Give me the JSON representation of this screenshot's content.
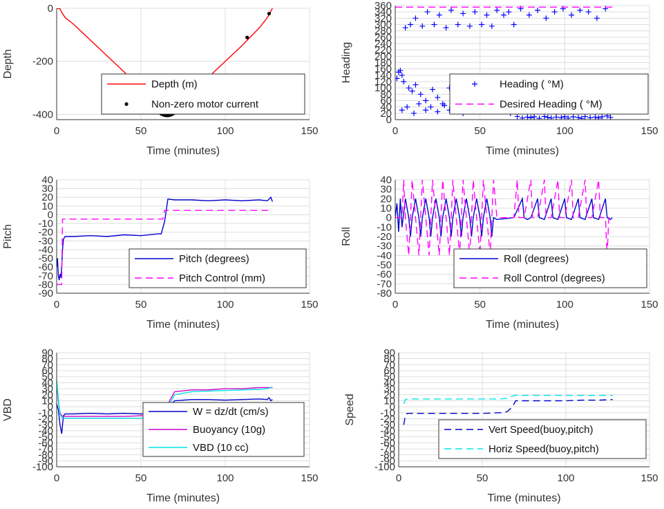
{
  "chart_data": [
    {
      "type": "line",
      "xlabel": "Time (minutes)",
      "ylabel": "Depth",
      "xlim": [
        0,
        150
      ],
      "ylim": [
        -420,
        0
      ],
      "xticks": [
        0,
        50,
        100,
        150
      ],
      "yticks": [
        -400,
        -200,
        0
      ],
      "grid": true,
      "legend": "bottom-right",
      "series": [
        {
          "name": "Depth (m)",
          "color": "#ff0000",
          "style": "solid",
          "x": [
            0,
            2,
            3,
            5,
            10,
            20,
            30,
            40,
            50,
            55,
            60,
            63,
            65,
            67,
            70,
            75,
            80,
            90,
            100,
            110,
            120,
            125,
            128
          ],
          "y": [
            0,
            -2,
            -15,
            -35,
            -60,
            -120,
            -180,
            -240,
            -300,
            -330,
            -365,
            -385,
            -395,
            -390,
            -375,
            -350,
            -320,
            -260,
            -200,
            -140,
            -75,
            -35,
            0
          ]
        },
        {
          "name": "Non-zero motor current",
          "color": "#000000",
          "style": "dots",
          "x": [
            62,
            63,
            64,
            65,
            66,
            67,
            68,
            69,
            70,
            72,
            113,
            126
          ],
          "y": [
            -398,
            -401,
            -403,
            -404,
            -404,
            -403,
            -401,
            -398,
            -394,
            -388,
            -110,
            -20
          ]
        }
      ]
    },
    {
      "type": "scatter",
      "xlabel": "Time (minutes)",
      "ylabel": "Heading",
      "xlim": [
        0,
        150
      ],
      "ylim": [
        0,
        360
      ],
      "xticks": [
        0,
        50,
        100,
        150
      ],
      "yticks": [
        0,
        20,
        40,
        60,
        80,
        100,
        120,
        140,
        160,
        180,
        200,
        220,
        240,
        260,
        280,
        300,
        320,
        340,
        360
      ],
      "grid": true,
      "legend": "bottom-right",
      "series": [
        {
          "name": "Heading (  °M)",
          "color": "#0000ff",
          "style": "plus",
          "x": [
            1,
            2,
            3,
            4,
            5,
            8,
            10,
            12,
            15,
            18,
            22,
            25,
            28,
            32,
            35,
            38,
            42,
            45,
            48,
            52,
            55,
            58,
            62,
            65,
            68,
            72,
            75,
            78,
            80,
            82,
            85,
            88,
            90,
            92,
            95,
            98,
            100,
            102,
            105,
            108,
            110,
            112,
            115,
            118,
            120,
            122,
            125,
            127,
            6,
            9,
            12,
            16,
            19,
            23,
            26,
            30,
            33,
            37,
            40,
            44,
            47,
            51,
            54,
            57,
            60,
            64,
            67,
            70,
            4,
            7,
            11,
            14,
            18,
            21,
            25,
            29,
            32,
            36,
            40,
            43,
            47,
            50,
            54,
            57,
            61,
            64,
            74,
            79,
            84,
            89,
            94,
            99,
            104,
            109,
            114,
            119,
            124
          ],
          "y": [
            130,
            150,
            155,
            140,
            120,
            100,
            90,
            110,
            80,
            60,
            95,
            70,
            50,
            100,
            85,
            60,
            100,
            75,
            55,
            105,
            80,
            60,
            100,
            50,
            20,
            10,
            5,
            8,
            6,
            9,
            4,
            10,
            7,
            5,
            8,
            6,
            10,
            5,
            9,
            7,
            4,
            10,
            6,
            8,
            5,
            9,
            12,
            7,
            290,
            300,
            320,
            295,
            340,
            300,
            330,
            290,
            345,
            300,
            335,
            295,
            340,
            300,
            330,
            295,
            345,
            330,
            340,
            300,
            30,
            40,
            20,
            50,
            30,
            40,
            25,
            45,
            30,
            35,
            20,
            45,
            30,
            40,
            25,
            35,
            30,
            40,
            350,
            330,
            345,
            320,
            340,
            350,
            330,
            345,
            340,
            320,
            350
          ]
        },
        {
          "name": "Desired Heading (  °M)",
          "color": "#ff00ff",
          "style": "dashed",
          "x": [
            0,
            130
          ],
          "y": [
            355,
            355
          ]
        }
      ]
    },
    {
      "type": "line",
      "xlabel": "Time (minutes)",
      "ylabel": "Pitch",
      "xlim": [
        0,
        150
      ],
      "ylim": [
        -90,
        40
      ],
      "xticks": [
        0,
        50,
        100,
        150
      ],
      "yticks": [
        -90,
        -80,
        -70,
        -60,
        -50,
        -40,
        -30,
        -20,
        -10,
        0,
        10,
        20,
        30,
        40
      ],
      "grid": true,
      "legend": "bottom-right",
      "series": [
        {
          "name": "Pitch (degrees)",
          "color": "#0000cc",
          "style": "solid",
          "x": [
            0,
            0.5,
            1,
            1.5,
            2,
            2.5,
            3,
            3.5,
            4,
            5,
            10,
            20,
            30,
            40,
            50,
            60,
            62,
            63,
            64,
            65,
            66,
            70,
            80,
            90,
            100,
            110,
            120,
            125,
            127,
            128
          ],
          "y": [
            -60,
            -50,
            -70,
            -75,
            -68,
            -72,
            -60,
            -40,
            -28,
            -25,
            -25,
            -24,
            -25,
            -23,
            -24,
            -22,
            -22,
            -15,
            -8,
            5,
            18,
            17,
            17,
            16,
            17,
            16,
            17,
            16,
            20,
            15
          ]
        },
        {
          "name": "Pitch Control (mm)",
          "color": "#ff00ff",
          "style": "dashed",
          "x": [
            0,
            3,
            3.5,
            5,
            60,
            63,
            64,
            65,
            128
          ],
          "y": [
            -80,
            -80,
            -5,
            -5,
            -5,
            -5,
            5,
            5,
            5
          ]
        }
      ]
    },
    {
      "type": "line",
      "xlabel": "Time (minutes)",
      "ylabel": "Roll",
      "xlim": [
        0,
        150
      ],
      "ylim": [
        -80,
        40
      ],
      "xticks": [
        0,
        50,
        100,
        150
      ],
      "yticks": [
        -80,
        -70,
        -60,
        -50,
        -40,
        -30,
        -20,
        -10,
        0,
        10,
        20,
        30,
        40
      ],
      "grid": true,
      "legend": "bottom-right",
      "series": [
        {
          "name": "Roll (degrees)",
          "color": "#0000cc",
          "style": "solid",
          "x": [
            0,
            1,
            2,
            3,
            4,
            5,
            6,
            8,
            9,
            10,
            12,
            14,
            15,
            16,
            18,
            20,
            21,
            22,
            24,
            26,
            27,
            28,
            30,
            32,
            33,
            34,
            36,
            38,
            39,
            40,
            42,
            44,
            45,
            46,
            48,
            50,
            51,
            52,
            54,
            56,
            57,
            58,
            60,
            70,
            75,
            76,
            78,
            80,
            84,
            85,
            88,
            92,
            93,
            96,
            100,
            101,
            104,
            108,
            109,
            112,
            116,
            117,
            120,
            124,
            125,
            127,
            128
          ],
          "y": [
            0,
            15,
            -15,
            20,
            -10,
            5,
            20,
            0,
            -20,
            0,
            20,
            0,
            -20,
            0,
            20,
            0,
            -20,
            0,
            20,
            0,
            -20,
            0,
            20,
            0,
            -20,
            0,
            20,
            0,
            -20,
            0,
            20,
            0,
            -20,
            0,
            20,
            0,
            -20,
            0,
            20,
            0,
            -20,
            0,
            -2,
            0,
            20,
            0,
            -2,
            0,
            20,
            0,
            -2,
            20,
            0,
            -2,
            20,
            0,
            -2,
            20,
            0,
            -2,
            20,
            0,
            -2,
            20,
            0,
            -2,
            0
          ]
        },
        {
          "name": "Roll Control (degrees)",
          "color": "#ff00ff",
          "style": "dashed",
          "x": [
            0,
            4,
            5,
            6,
            8,
            9,
            10,
            12,
            14,
            15,
            16,
            18,
            20,
            21,
            22,
            24,
            26,
            27,
            28,
            30,
            32,
            33,
            34,
            36,
            38,
            39,
            40,
            42,
            44,
            45,
            46,
            48,
            50,
            51,
            52,
            54,
            56,
            57,
            58,
            60,
            70,
            72,
            73,
            76,
            80,
            81,
            84,
            88,
            89,
            92,
            96,
            97,
            100,
            104,
            105,
            108,
            112,
            113,
            116,
            120,
            121,
            124,
            125,
            126,
            128
          ],
          "y": [
            0,
            0,
            40,
            0,
            -40,
            0,
            40,
            0,
            -40,
            0,
            40,
            0,
            -40,
            0,
            40,
            0,
            -40,
            0,
            40,
            0,
            -40,
            0,
            40,
            0,
            -40,
            0,
            40,
            0,
            -40,
            0,
            40,
            0,
            -40,
            0,
            40,
            0,
            -40,
            0,
            40,
            0,
            0,
            40,
            0,
            0,
            40,
            0,
            0,
            40,
            0,
            0,
            40,
            0,
            0,
            40,
            0,
            0,
            40,
            0,
            0,
            40,
            0,
            0,
            -40,
            0,
            0
          ]
        }
      ]
    },
    {
      "type": "line",
      "xlabel": "Time (minutes)",
      "ylabel": "VBD",
      "xlim": [
        0,
        150
      ],
      "ylim": [
        -100,
        90
      ],
      "xticks": [
        0,
        50,
        100,
        150
      ],
      "yticks": [
        -100,
        -90,
        -80,
        -70,
        -60,
        -50,
        -40,
        -30,
        -20,
        -10,
        0,
        10,
        20,
        30,
        40,
        50,
        60,
        70,
        80,
        90
      ],
      "grid": true,
      "legend": "bottom-right",
      "series": [
        {
          "name": "W = dz/dt (cm/s)",
          "color": "#0000cc",
          "style": "solid",
          "x": [
            0,
            1,
            2,
            3,
            4,
            5,
            10,
            20,
            30,
            40,
            50,
            60,
            63,
            65,
            67,
            70,
            80,
            90,
            100,
            110,
            120,
            125,
            126,
            127,
            128
          ],
          "y": [
            5,
            -5,
            -30,
            -45,
            -15,
            -12,
            -12,
            -11,
            -12,
            -11,
            -12,
            -12,
            -11,
            -5,
            2,
            10,
            12,
            12,
            11,
            12,
            13,
            12,
            15,
            10,
            12
          ]
        },
        {
          "name": "Buoyancy (10g)",
          "color": "#cc00cc",
          "style": "solid",
          "x": [
            0,
            1,
            2,
            3,
            4,
            5,
            10,
            20,
            30,
            40,
            50,
            60,
            63,
            65,
            67,
            70,
            80,
            90,
            100,
            110,
            120,
            125,
            128
          ],
          "y": [
            40,
            10,
            -10,
            -15,
            -16,
            -16,
            -16,
            -16,
            -16,
            -16,
            -15,
            -15,
            -14,
            -5,
            10,
            25,
            28,
            28,
            30,
            30,
            32,
            32,
            32
          ]
        },
        {
          "name": "VBD (10 cc)",
          "color": "#00e5e5",
          "style": "solid",
          "x": [
            0,
            1,
            2,
            3,
            4,
            5,
            10,
            20,
            30,
            40,
            50,
            60,
            63,
            65,
            67,
            70,
            80,
            90,
            100,
            110,
            120,
            125,
            128
          ],
          "y": [
            45,
            15,
            -12,
            -18,
            -19,
            -19,
            -19,
            -19,
            -19,
            -19,
            -19,
            -18,
            -17,
            -10,
            5,
            20,
            25,
            26,
            27,
            28,
            29,
            30,
            33
          ]
        }
      ]
    },
    {
      "type": "line",
      "xlabel": "Time (minutes)",
      "ylabel": "Speed",
      "xlim": [
        0,
        150
      ],
      "ylim": [
        -100,
        90
      ],
      "xticks": [
        0,
        50,
        100,
        150
      ],
      "yticks": [
        -100,
        -90,
        -80,
        -70,
        -60,
        -50,
        -40,
        -30,
        -20,
        -10,
        0,
        10,
        20,
        30,
        40,
        50,
        60,
        70,
        80,
        90
      ],
      "grid": true,
      "legend": "bottom-right",
      "series": [
        {
          "name": "Vert Speed(buoy,pitch)",
          "color": "#0000cc",
          "style": "dashed",
          "x": [
            3,
            4,
            5,
            10,
            20,
            30,
            40,
            50,
            60,
            62,
            65,
            68,
            70,
            80,
            90,
            100,
            110,
            120,
            128
          ],
          "y": [
            -30,
            -15,
            -11,
            -11,
            -11,
            -11,
            -11,
            -11,
            -10,
            -10,
            -8,
            0,
            10,
            10,
            10,
            10,
            11,
            11,
            12
          ]
        },
        {
          "name": "Horiz Speed(buoy,pitch)",
          "color": "#00e5e5",
          "style": "dashed",
          "x": [
            3,
            4,
            5,
            10,
            20,
            30,
            40,
            50,
            60,
            65,
            68,
            70,
            80,
            90,
            100,
            110,
            120,
            128
          ],
          "y": [
            5,
            12,
            13,
            13,
            13,
            13,
            13,
            13,
            13,
            14,
            18,
            19,
            19,
            19,
            19,
            19,
            19,
            19
          ]
        }
      ]
    }
  ]
}
